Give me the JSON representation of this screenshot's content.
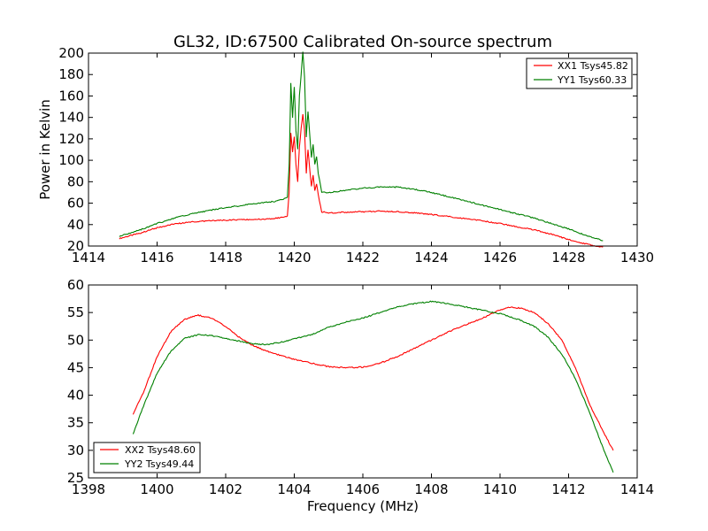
{
  "chart_data": [
    {
      "type": "line",
      "title": "GL32, ID:67500 Calibrated On-source spectrum",
      "xlabel": "",
      "ylabel": "Power in Kelvin",
      "xlim": [
        1414,
        1430
      ],
      "ylim": [
        20,
        200
      ],
      "xticks": [
        "1414",
        "1416",
        "1418",
        "1420",
        "1422",
        "1424",
        "1426",
        "1428",
        "1430"
      ],
      "yticks": [
        "20",
        "40",
        "60",
        "80",
        "100",
        "120",
        "140",
        "160",
        "180",
        "200"
      ],
      "legend_position": "top-right",
      "grid": false,
      "series": [
        {
          "name": "XX1 Tsys45.82",
          "color": "#ff0000",
          "x": [
            1414.9,
            1415.5,
            1416.0,
            1416.5,
            1417.0,
            1417.5,
            1418.0,
            1418.5,
            1419.0,
            1419.5,
            1419.8,
            1419.85,
            1419.9,
            1419.95,
            1420.0,
            1420.05,
            1420.1,
            1420.15,
            1420.2,
            1420.25,
            1420.3,
            1420.35,
            1420.4,
            1420.45,
            1420.5,
            1420.55,
            1420.6,
            1420.65,
            1420.7,
            1420.8,
            1421.0,
            1421.5,
            1422.0,
            1422.5,
            1423.0,
            1423.5,
            1424.0,
            1424.5,
            1425.0,
            1425.5,
            1426.0,
            1426.5,
            1427.0,
            1427.5,
            1428.0,
            1428.5,
            1429.0
          ],
          "values": [
            27,
            32,
            37,
            40.5,
            42.5,
            43.5,
            44,
            44.5,
            45,
            46,
            48,
            70,
            125,
            108,
            122,
            96,
            80,
            112,
            130,
            143,
            128,
            88,
            110,
            92,
            76,
            86,
            72,
            78,
            68,
            52,
            51,
            51.5,
            52,
            52.5,
            52,
            51,
            49.5,
            47.5,
            45.5,
            43.5,
            41,
            38,
            35,
            31,
            26,
            22,
            19
          ]
        },
        {
          "name": "YY1 Tsys60.33",
          "color": "#008000",
          "x": [
            1414.9,
            1415.5,
            1416.0,
            1416.5,
            1417.0,
            1417.5,
            1418.0,
            1418.5,
            1419.0,
            1419.5,
            1419.8,
            1419.85,
            1419.9,
            1419.95,
            1420.0,
            1420.05,
            1420.1,
            1420.15,
            1420.2,
            1420.25,
            1420.3,
            1420.35,
            1420.4,
            1420.45,
            1420.5,
            1420.55,
            1420.6,
            1420.65,
            1420.7,
            1420.8,
            1421.0,
            1421.5,
            1422.0,
            1422.5,
            1423.0,
            1423.5,
            1424.0,
            1424.5,
            1425.0,
            1425.5,
            1426.0,
            1426.5,
            1427.0,
            1427.5,
            1428.0,
            1428.5,
            1429.0
          ],
          "values": [
            29,
            35,
            41,
            46,
            50,
            53,
            56,
            58,
            60,
            62,
            65,
            95,
            172,
            140,
            168,
            128,
            110,
            160,
            180,
            201,
            178,
            122,
            145,
            125,
            102,
            115,
            96,
            104,
            88,
            70,
            70,
            72,
            74,
            75,
            75,
            73,
            70,
            66,
            62,
            58,
            54,
            50,
            46,
            41,
            36,
            30,
            25
          ]
        }
      ]
    },
    {
      "type": "line",
      "title": "",
      "xlabel": "Frequency (MHz)",
      "ylabel": "",
      "xlim": [
        1398,
        1414
      ],
      "ylim": [
        25,
        60
      ],
      "xticks": [
        "1398",
        "1400",
        "1402",
        "1404",
        "1406",
        "1408",
        "1410",
        "1412",
        "1414"
      ],
      "yticks": [
        "25",
        "30",
        "35",
        "40",
        "45",
        "50",
        "55",
        "60"
      ],
      "legend_position": "lower-left",
      "grid": false,
      "series": [
        {
          "name": "XX2 Tsys48.60",
          "color": "#ff0000",
          "x": [
            1399.3,
            1399.6,
            1400.0,
            1400.4,
            1400.8,
            1401.2,
            1401.6,
            1402.0,
            1402.4,
            1402.8,
            1403.2,
            1403.6,
            1404.0,
            1404.5,
            1405.0,
            1405.5,
            1406.0,
            1406.5,
            1407.0,
            1407.5,
            1408.0,
            1408.5,
            1409.0,
            1409.5,
            1410.0,
            1410.3,
            1410.6,
            1411.0,
            1411.4,
            1411.8,
            1412.2,
            1412.6,
            1413.0,
            1413.3
          ],
          "values": [
            36.5,
            40.5,
            47,
            51.5,
            53.8,
            54.5,
            54,
            52.5,
            50.5,
            49,
            48,
            47.2,
            46.5,
            45.8,
            45.2,
            45,
            45.1,
            45.8,
            47,
            48.5,
            50,
            51.5,
            52.8,
            54,
            55.5,
            56,
            55.8,
            55,
            53,
            50,
            45,
            38.5,
            33.5,
            30
          ]
        },
        {
          "name": "YY2 Tsys49.44",
          "color": "#008000",
          "x": [
            1399.3,
            1399.6,
            1400.0,
            1400.4,
            1400.8,
            1401.2,
            1401.6,
            1402.0,
            1402.4,
            1402.8,
            1403.2,
            1403.6,
            1404.0,
            1404.5,
            1405.0,
            1405.5,
            1406.0,
            1406.5,
            1407.0,
            1407.5,
            1408.0,
            1408.5,
            1409.0,
            1409.5,
            1410.0,
            1410.3,
            1410.6,
            1411.0,
            1411.4,
            1411.8,
            1412.2,
            1412.6,
            1413.0,
            1413.3
          ],
          "values": [
            33,
            38,
            44,
            48,
            50.3,
            51,
            50.8,
            50.3,
            49.8,
            49.3,
            49.2,
            49.6,
            50.2,
            51,
            52.3,
            53.3,
            54,
            55,
            56,
            56.6,
            57,
            56.6,
            56,
            55.4,
            54.8,
            54.2,
            53.6,
            52.5,
            50.5,
            47.5,
            43,
            37,
            30.5,
            26
          ]
        }
      ]
    }
  ]
}
